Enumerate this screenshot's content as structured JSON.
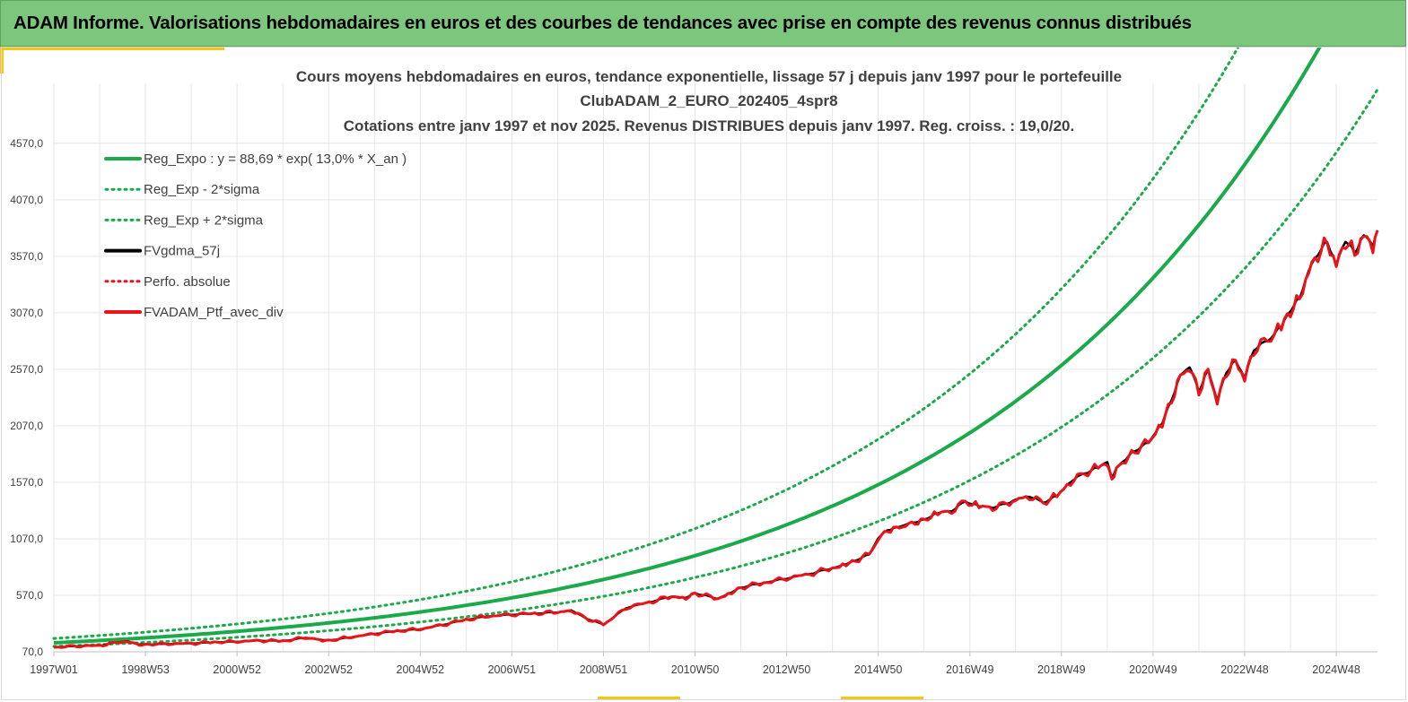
{
  "header": {
    "banner_title": "ADAM Informe. Valorisations hebdomadaires en euros et des courbes de tendances avec prise en compte des revenus connus distribués"
  },
  "colors": {
    "banner_bg": "#7dc67e",
    "accent": "#f5c518",
    "trend_green": "#1aaa4a",
    "black": "#000000",
    "red": "#e8141a",
    "grid": "#e6e6e6"
  },
  "chart_data": {
    "type": "line",
    "title_lines": [
      "Cours moyens hebdomadaires  en euros, tendance exponentielle, lissage 57 j depuis janv 1997 pour le portefeuille",
      "ClubADAM_2_EURO_202405_4spr8",
      "Cotations  entre janv 1997 et nov 2025. Revenus DISTRIBUES depuis janv 1997. Reg. croiss. : 19,0/20."
    ],
    "xlabel": "",
    "ylabel": "",
    "x_range_years": [
      1997.0,
      2025.9
    ],
    "ylim": [
      70,
      5100
    ],
    "y_ticks": [
      70,
      570,
      1070,
      1570,
      2070,
      2570,
      3070,
      3570,
      4070,
      4570
    ],
    "y_tick_labels": [
      "70,0",
      "570,0",
      "1070,0",
      "1570,0",
      "2070,0",
      "2570,0",
      "3070,0",
      "3570,0",
      "4070,0",
      "4570,0"
    ],
    "x_ticks": [
      1997.0,
      1999.0,
      2001.0,
      2003.0,
      2005.0,
      2007.0,
      2009.0,
      2011.0,
      2013.0,
      2015.0,
      2017.0,
      2019.0,
      2021.0,
      2023.0,
      2025.0
    ],
    "x_tick_labels": [
      "1997W01",
      "1998W53",
      "2000W52",
      "2002W52",
      "2004W52",
      "2006W51",
      "2008W51",
      "2010W50",
      "2012W50",
      "2014W50",
      "2016W49",
      "2018W49",
      "2020W49",
      "2022W48",
      "2024W48"
    ],
    "legend_position": "top-left",
    "regression": {
      "a": 88.69,
      "rate": 0.13,
      "lower_factor": 0.79,
      "upper_factor": 1.26
    },
    "series": [
      {
        "name": "Reg_Expo : y = 88,69 * exp( 13,0% *  X_an )",
        "style": "solid-green",
        "kind": "regression"
      },
      {
        "name": "Reg_Exp - 2*sigma",
        "style": "dotted-green",
        "kind": "lower"
      },
      {
        "name": "Reg_Exp + 2*sigma",
        "style": "dotted-green",
        "kind": "upper"
      },
      {
        "name": "FVgdma_57j",
        "style": "solid-black",
        "kind": "smoothed"
      },
      {
        "name": "Perfo. absolue",
        "style": "dotted-red",
        "kind": "hidden"
      },
      {
        "name": "FVADAM_Ptf_avec_div",
        "style": "solid-red",
        "kind": "price",
        "x": [
          1997.0,
          1997.5,
          1998.0,
          1998.3,
          1998.6,
          1998.8,
          1999.0,
          1999.5,
          2000.0,
          2000.5,
          2001.0,
          2001.5,
          2002.0,
          2002.5,
          2002.8,
          2003.0,
          2003.5,
          2004.0,
          2004.5,
          2005.0,
          2005.5,
          2006.0,
          2006.5,
          2007.0,
          2007.5,
          2008.0,
          2008.3,
          2008.6,
          2009.0,
          2009.5,
          2010.0,
          2010.5,
          2010.8,
          2011.0,
          2011.5,
          2011.8,
          2012.0,
          2012.5,
          2013.0,
          2013.5,
          2014.0,
          2014.3,
          2014.5,
          2014.8,
          2015.0,
          2015.2,
          2015.4,
          2015.6,
          2015.8,
          2016.0,
          2016.3,
          2016.6,
          2016.9,
          2017.2,
          2017.5,
          2017.8,
          2018.0,
          2018.3,
          2018.6,
          2018.9,
          2019.2,
          2019.5,
          2019.8,
          2020.0,
          2020.1,
          2020.2,
          2020.4,
          2020.6,
          2020.9,
          2021.2,
          2021.4,
          2021.6,
          2021.8,
          2022.0,
          2022.2,
          2022.4,
          2022.6,
          2022.8,
          2023.0,
          2023.2,
          2023.5,
          2023.8,
          2024.0,
          2024.2,
          2024.4,
          2024.6,
          2024.8,
          2025.0,
          2025.2,
          2025.4,
          2025.6,
          2025.8,
          2025.9
        ],
        "values": [
          110,
          120,
          125,
          150,
          165,
          140,
          135,
          140,
          145,
          155,
          160,
          170,
          165,
          195,
          180,
          170,
          200,
          230,
          255,
          270,
          310,
          355,
          385,
          400,
          410,
          420,
          440,
          370,
          310,
          460,
          510,
          560,
          550,
          590,
          540,
          600,
          640,
          680,
          720,
          760,
          810,
          850,
          880,
          930,
          1080,
          1150,
          1170,
          1200,
          1220,
          1240,
          1300,
          1320,
          1400,
          1360,
          1350,
          1380,
          1420,
          1450,
          1390,
          1450,
          1580,
          1650,
          1700,
          1760,
          1610,
          1700,
          1780,
          1850,
          1920,
          2100,
          2300,
          2520,
          2600,
          2380,
          2570,
          2300,
          2550,
          2650,
          2500,
          2750,
          2820,
          2950,
          3100,
          3200,
          3450,
          3600,
          3700,
          3500,
          3720,
          3600,
          3760,
          3680,
          3800
        ]
      }
    ]
  }
}
